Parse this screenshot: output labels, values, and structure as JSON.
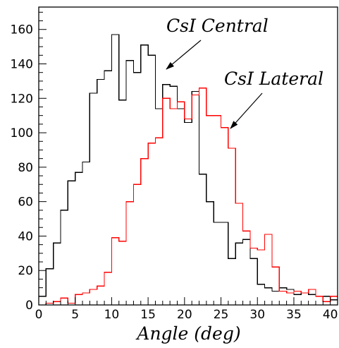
{
  "chart_data": {
    "type": "histogram",
    "title": "",
    "xlabel": "Angle (deg)",
    "ylabel": "",
    "xlim": [
      0,
      41
    ],
    "ylim": [
      0,
      173
    ],
    "bin_width": 1,
    "grid": false,
    "x_ticks": [
      0,
      5,
      10,
      15,
      20,
      25,
      30,
      35,
      40
    ],
    "y_ticks": [
      0,
      20,
      40,
      60,
      80,
      100,
      120,
      140,
      160
    ],
    "series": [
      {
        "name": "CsI Central",
        "color": "#000000",
        "bin_edges_start": 0,
        "values": [
          5,
          21,
          36,
          55,
          72,
          77,
          83,
          123,
          131,
          136,
          157,
          119,
          142,
          135,
          151,
          145,
          114,
          128,
          127,
          114,
          106,
          124,
          76,
          60,
          48,
          48,
          27,
          36,
          38,
          27,
          12,
          10,
          8,
          10,
          9,
          6,
          7,
          6,
          5,
          5,
          3
        ]
      },
      {
        "name": "CsI Lateral",
        "color": "#ff0000",
        "bin_edges_start": 0,
        "values": [
          0,
          1,
          2,
          4,
          1,
          6,
          7,
          9,
          11,
          19,
          39,
          37,
          60,
          70,
          85,
          94,
          97,
          120,
          114,
          118,
          108,
          122,
          126,
          110,
          110,
          103,
          91,
          59,
          43,
          33,
          32,
          41,
          22,
          8,
          7,
          8,
          7,
          9,
          5,
          2,
          5
        ]
      }
    ],
    "annotations": [
      {
        "text": "CsI Central",
        "target_series": "CsI Central"
      },
      {
        "text": "CsI Lateral",
        "target_series": "CsI Lateral"
      }
    ]
  }
}
